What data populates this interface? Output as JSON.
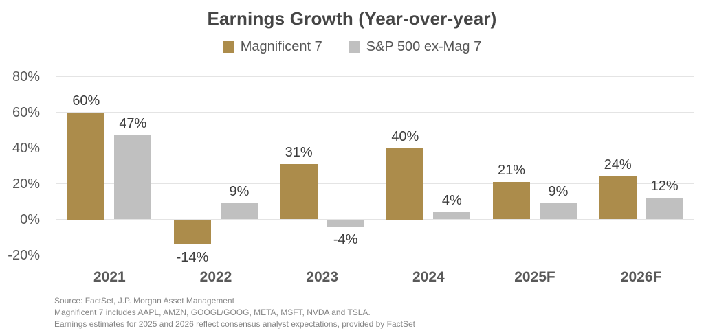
{
  "title": "Earnings Growth (Year-over-year)",
  "footer": {
    "lines": [
      "Source: FactSet, J.P. Morgan Asset Management",
      "Magnificent 7 includes AAPL, AMZN, GOOGL/GOOG, META, MSFT, NVDA and TSLA.",
      "Earnings estimates for 2025 and 2026 reflect consensus analyst expectations, provided by FactSet"
    ]
  },
  "colors": {
    "mag7": "#AC8C4B",
    "sp500_ex_mag7": "#C0C0C0",
    "gridline": "#E4E4E4",
    "title_text": "#454545",
    "axis_text": "#595959",
    "value_text": "#3D3D3D",
    "footer_text": "#858585"
  },
  "chart_data": {
    "type": "bar",
    "title": "Earnings Growth (Year-over-year)",
    "categories": [
      "2021",
      "2022",
      "2023",
      "2024",
      "2025F",
      "2026F"
    ],
    "series": [
      {
        "name": "Magnificent 7",
        "color": "#AC8C4B",
        "values": [
          60,
          -14,
          31,
          40,
          21,
          24
        ]
      },
      {
        "name": "S&P 500 ex-Mag 7",
        "color": "#C0C0C0",
        "values": [
          47,
          9,
          -4,
          4,
          9,
          12
        ]
      }
    ],
    "value_labels": [
      "60%",
      "-14%",
      "31%",
      "40%",
      "21%",
      "24%",
      "47%",
      "9%",
      "-4%",
      "4%",
      "9%",
      "12%"
    ],
    "xlabel": "",
    "ylabel": "",
    "ylim": [
      -20,
      80
    ],
    "yticks": [
      80,
      60,
      40,
      20,
      0,
      -20
    ],
    "ytick_suffix": "%",
    "grid": true,
    "legend_position": "top",
    "data_labels": true
  }
}
